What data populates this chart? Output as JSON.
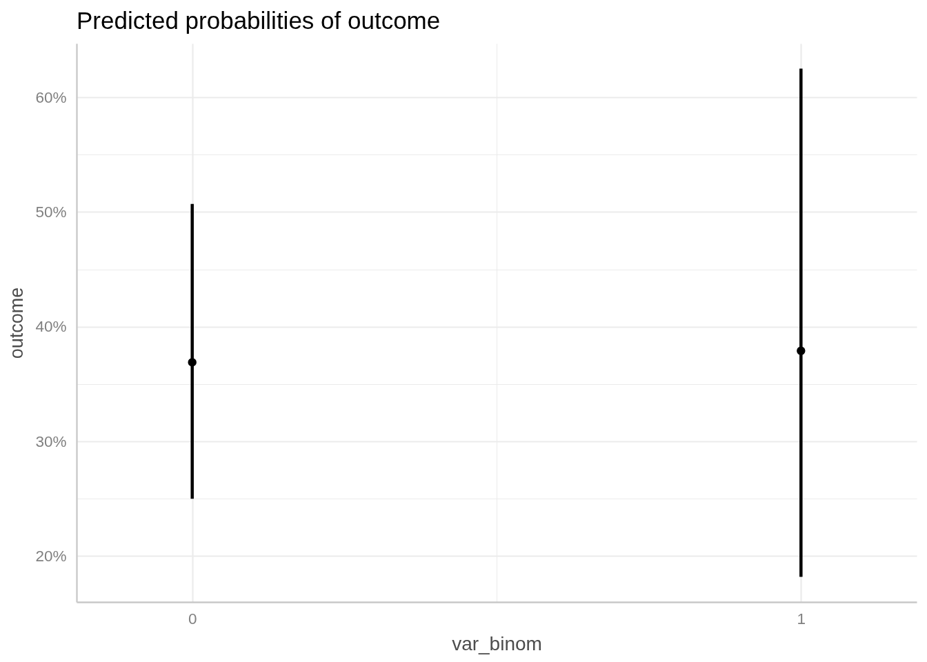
{
  "chart_data": {
    "type": "scatter",
    "title": "Predicted probabilities of outcome",
    "xlabel": "var_binom",
    "ylabel": "outcome",
    "x": [
      0,
      1
    ],
    "series": [
      {
        "color": "#000000",
        "values": [
          36.9,
          37.9
        ],
        "errors": [
          [
            25.0,
            50.7
          ],
          [
            18.2,
            62.5
          ]
        ]
      }
    ],
    "xlim": [
      -0.19,
      1.19
    ],
    "xticks": [
      0,
      {
        "value": 0.5,
        "label": null
      },
      1
    ],
    "ylim": [
      16,
      64.7
    ],
    "yticks": [
      {
        "value": 20,
        "label": "20%"
      },
      {
        "value": 25,
        "label": null
      },
      {
        "value": 30,
        "label": "30%"
      },
      {
        "value": 35,
        "label": null
      },
      {
        "value": 40,
        "label": "40%"
      },
      {
        "value": 45,
        "label": null
      },
      {
        "value": 50,
        "label": "50%"
      },
      {
        "value": 55,
        "label": null
      },
      {
        "value": 60,
        "label": "60%"
      }
    ],
    "grid": true,
    "marker": "circle"
  }
}
